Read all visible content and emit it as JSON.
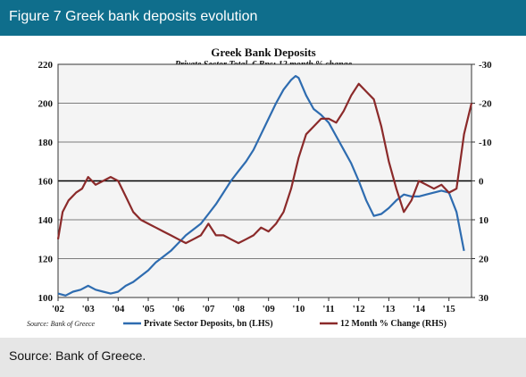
{
  "header": {
    "title": "Figure 7 Greek bank deposits evolution"
  },
  "footer": {
    "source": "Source: Bank of Greece."
  },
  "chart_data": {
    "type": "line",
    "title": "Greek Bank Deposits",
    "subtitle": "Private Sector Total, € Bns; 12 month % change",
    "source_note": "Source: Bank of Greece",
    "x_ticks": [
      "'02",
      "'03",
      "'04",
      "'05",
      "'06",
      "'07",
      "'08",
      "'09",
      "'10",
      "'11",
      "'12",
      "'13",
      "'14",
      "'15"
    ],
    "xlim": [
      2002.0,
      2015.75
    ],
    "left_axis": {
      "ylim": [
        100,
        220
      ],
      "ticks": [
        "100",
        "120",
        "140",
        "160",
        "180",
        "200",
        "220"
      ]
    },
    "right_axis": {
      "inverted": true,
      "ylim": [
        30,
        -30
      ],
      "ticks": [
        "30",
        "20",
        "10",
        "0",
        "-10",
        "-20",
        "-30"
      ]
    },
    "grid": "horizontal",
    "legend_position": "bottom",
    "colors": {
      "deposits": "#2e6cb0",
      "change": "#8b2a2a",
      "grid": "#555555",
      "zero_line": "#000000"
    },
    "series": [
      {
        "name": "Private Sector Deposits, bn (LHS)",
        "axis": "left",
        "x": [
          2002.0,
          2002.25,
          2002.5,
          2002.75,
          2003.0,
          2003.25,
          2003.5,
          2003.75,
          2004.0,
          2004.25,
          2004.5,
          2004.75,
          2005.0,
          2005.25,
          2005.5,
          2005.75,
          2006.0,
          2006.25,
          2006.5,
          2006.75,
          2007.0,
          2007.25,
          2007.5,
          2007.75,
          2008.0,
          2008.25,
          2008.5,
          2008.75,
          2009.0,
          2009.25,
          2009.5,
          2009.75,
          2009.9,
          2010.0,
          2010.25,
          2010.5,
          2010.75,
          2011.0,
          2011.25,
          2011.5,
          2011.75,
          2012.0,
          2012.25,
          2012.5,
          2012.75,
          2013.0,
          2013.25,
          2013.5,
          2013.75,
          2014.0,
          2014.25,
          2014.5,
          2014.75,
          2015.0,
          2015.25,
          2015.5
        ],
        "values": [
          102,
          101,
          103,
          104,
          106,
          104,
          103,
          102,
          103,
          106,
          108,
          111,
          114,
          118,
          121,
          124,
          128,
          132,
          135,
          138,
          143,
          148,
          154,
          160,
          165,
          170,
          176,
          184,
          192,
          200,
          207,
          212,
          214,
          213,
          204,
          197,
          194,
          190,
          183,
          176,
          169,
          160,
          150,
          142,
          143,
          146,
          150,
          153,
          152,
          152,
          153,
          154,
          155,
          154,
          144,
          124
        ]
      },
      {
        "name": "12 Month % Change (RHS)",
        "axis": "right",
        "x": [
          2002.0,
          2002.15,
          2002.35,
          2002.6,
          2002.8,
          2003.0,
          2003.25,
          2003.5,
          2003.75,
          2004.0,
          2004.25,
          2004.5,
          2004.75,
          2005.0,
          2005.25,
          2005.5,
          2005.75,
          2006.0,
          2006.25,
          2006.5,
          2006.75,
          2007.0,
          2007.25,
          2007.5,
          2007.75,
          2008.0,
          2008.25,
          2008.5,
          2008.75,
          2009.0,
          2009.25,
          2009.5,
          2009.75,
          2010.0,
          2010.25,
          2010.5,
          2010.75,
          2011.0,
          2011.25,
          2011.5,
          2011.75,
          2012.0,
          2012.25,
          2012.5,
          2012.75,
          2013.0,
          2013.25,
          2013.5,
          2013.75,
          2014.0,
          2014.25,
          2014.5,
          2014.75,
          2015.0,
          2015.25,
          2015.5,
          2015.75
        ],
        "values": [
          15,
          8,
          5,
          3,
          2,
          -1,
          1,
          0,
          -1,
          0,
          4,
          8,
          10,
          11,
          12,
          13,
          14,
          15,
          16,
          15,
          14,
          11,
          14,
          14,
          15,
          16,
          15,
          14,
          12,
          13,
          11,
          8,
          2,
          -6,
          -12,
          -14,
          -16,
          -16,
          -15,
          -18,
          -22,
          -25,
          -23,
          -21,
          -14,
          -5,
          2,
          8,
          5,
          0,
          1,
          2,
          1,
          3,
          2,
          -12,
          -20
        ]
      }
    ]
  }
}
